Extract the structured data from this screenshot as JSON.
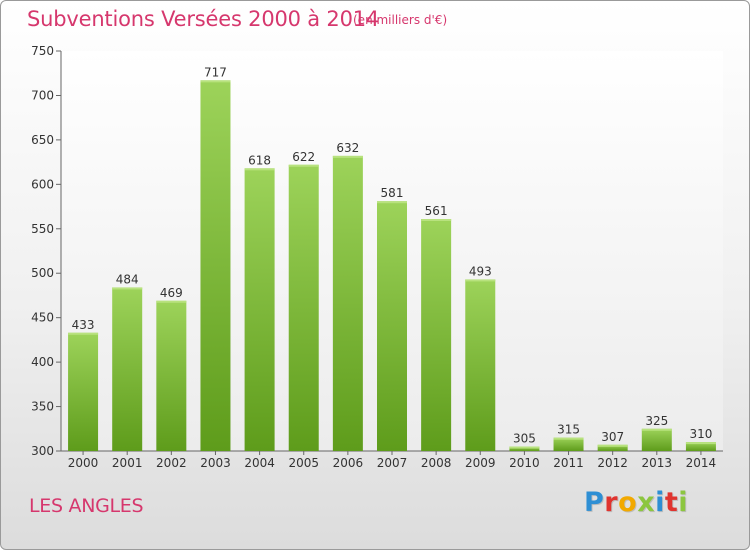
{
  "header": {
    "title": "Subventions Versées 2000 à 2014",
    "unit_note": "(en milliers d'€)"
  },
  "footer": {
    "commune": "LES ANGLES",
    "logo_text": "Proxiti",
    "logo_colors": [
      "#2e8fd4",
      "#e0342f",
      "#f2a900",
      "#8cc63f",
      "#2e8fd4",
      "#e0342f",
      "#8cc63f"
    ]
  },
  "chart_data": {
    "type": "bar",
    "title": "Subventions Versées 2000 à 2014",
    "subtitle": "(en milliers d'€)",
    "xlabel": "",
    "ylabel": "",
    "categories": [
      "2000",
      "2001",
      "2002",
      "2003",
      "2004",
      "2005",
      "2006",
      "2007",
      "2008",
      "2009",
      "2010",
      "2011",
      "2012",
      "2013",
      "2014"
    ],
    "values": [
      433,
      484,
      469,
      717,
      618,
      622,
      632,
      581,
      561,
      493,
      305,
      315,
      307,
      325,
      310
    ],
    "ylim": [
      300,
      750
    ],
    "yticks": [
      300,
      350,
      400,
      450,
      500,
      550,
      600,
      650,
      700,
      750
    ],
    "grid": false,
    "data_labels": true,
    "colors": {
      "bar_top": "#9dd35a",
      "bar_bottom": "#5e9c1b",
      "text": "#333333",
      "axis": "#666666",
      "accent": "#d6376d"
    }
  }
}
